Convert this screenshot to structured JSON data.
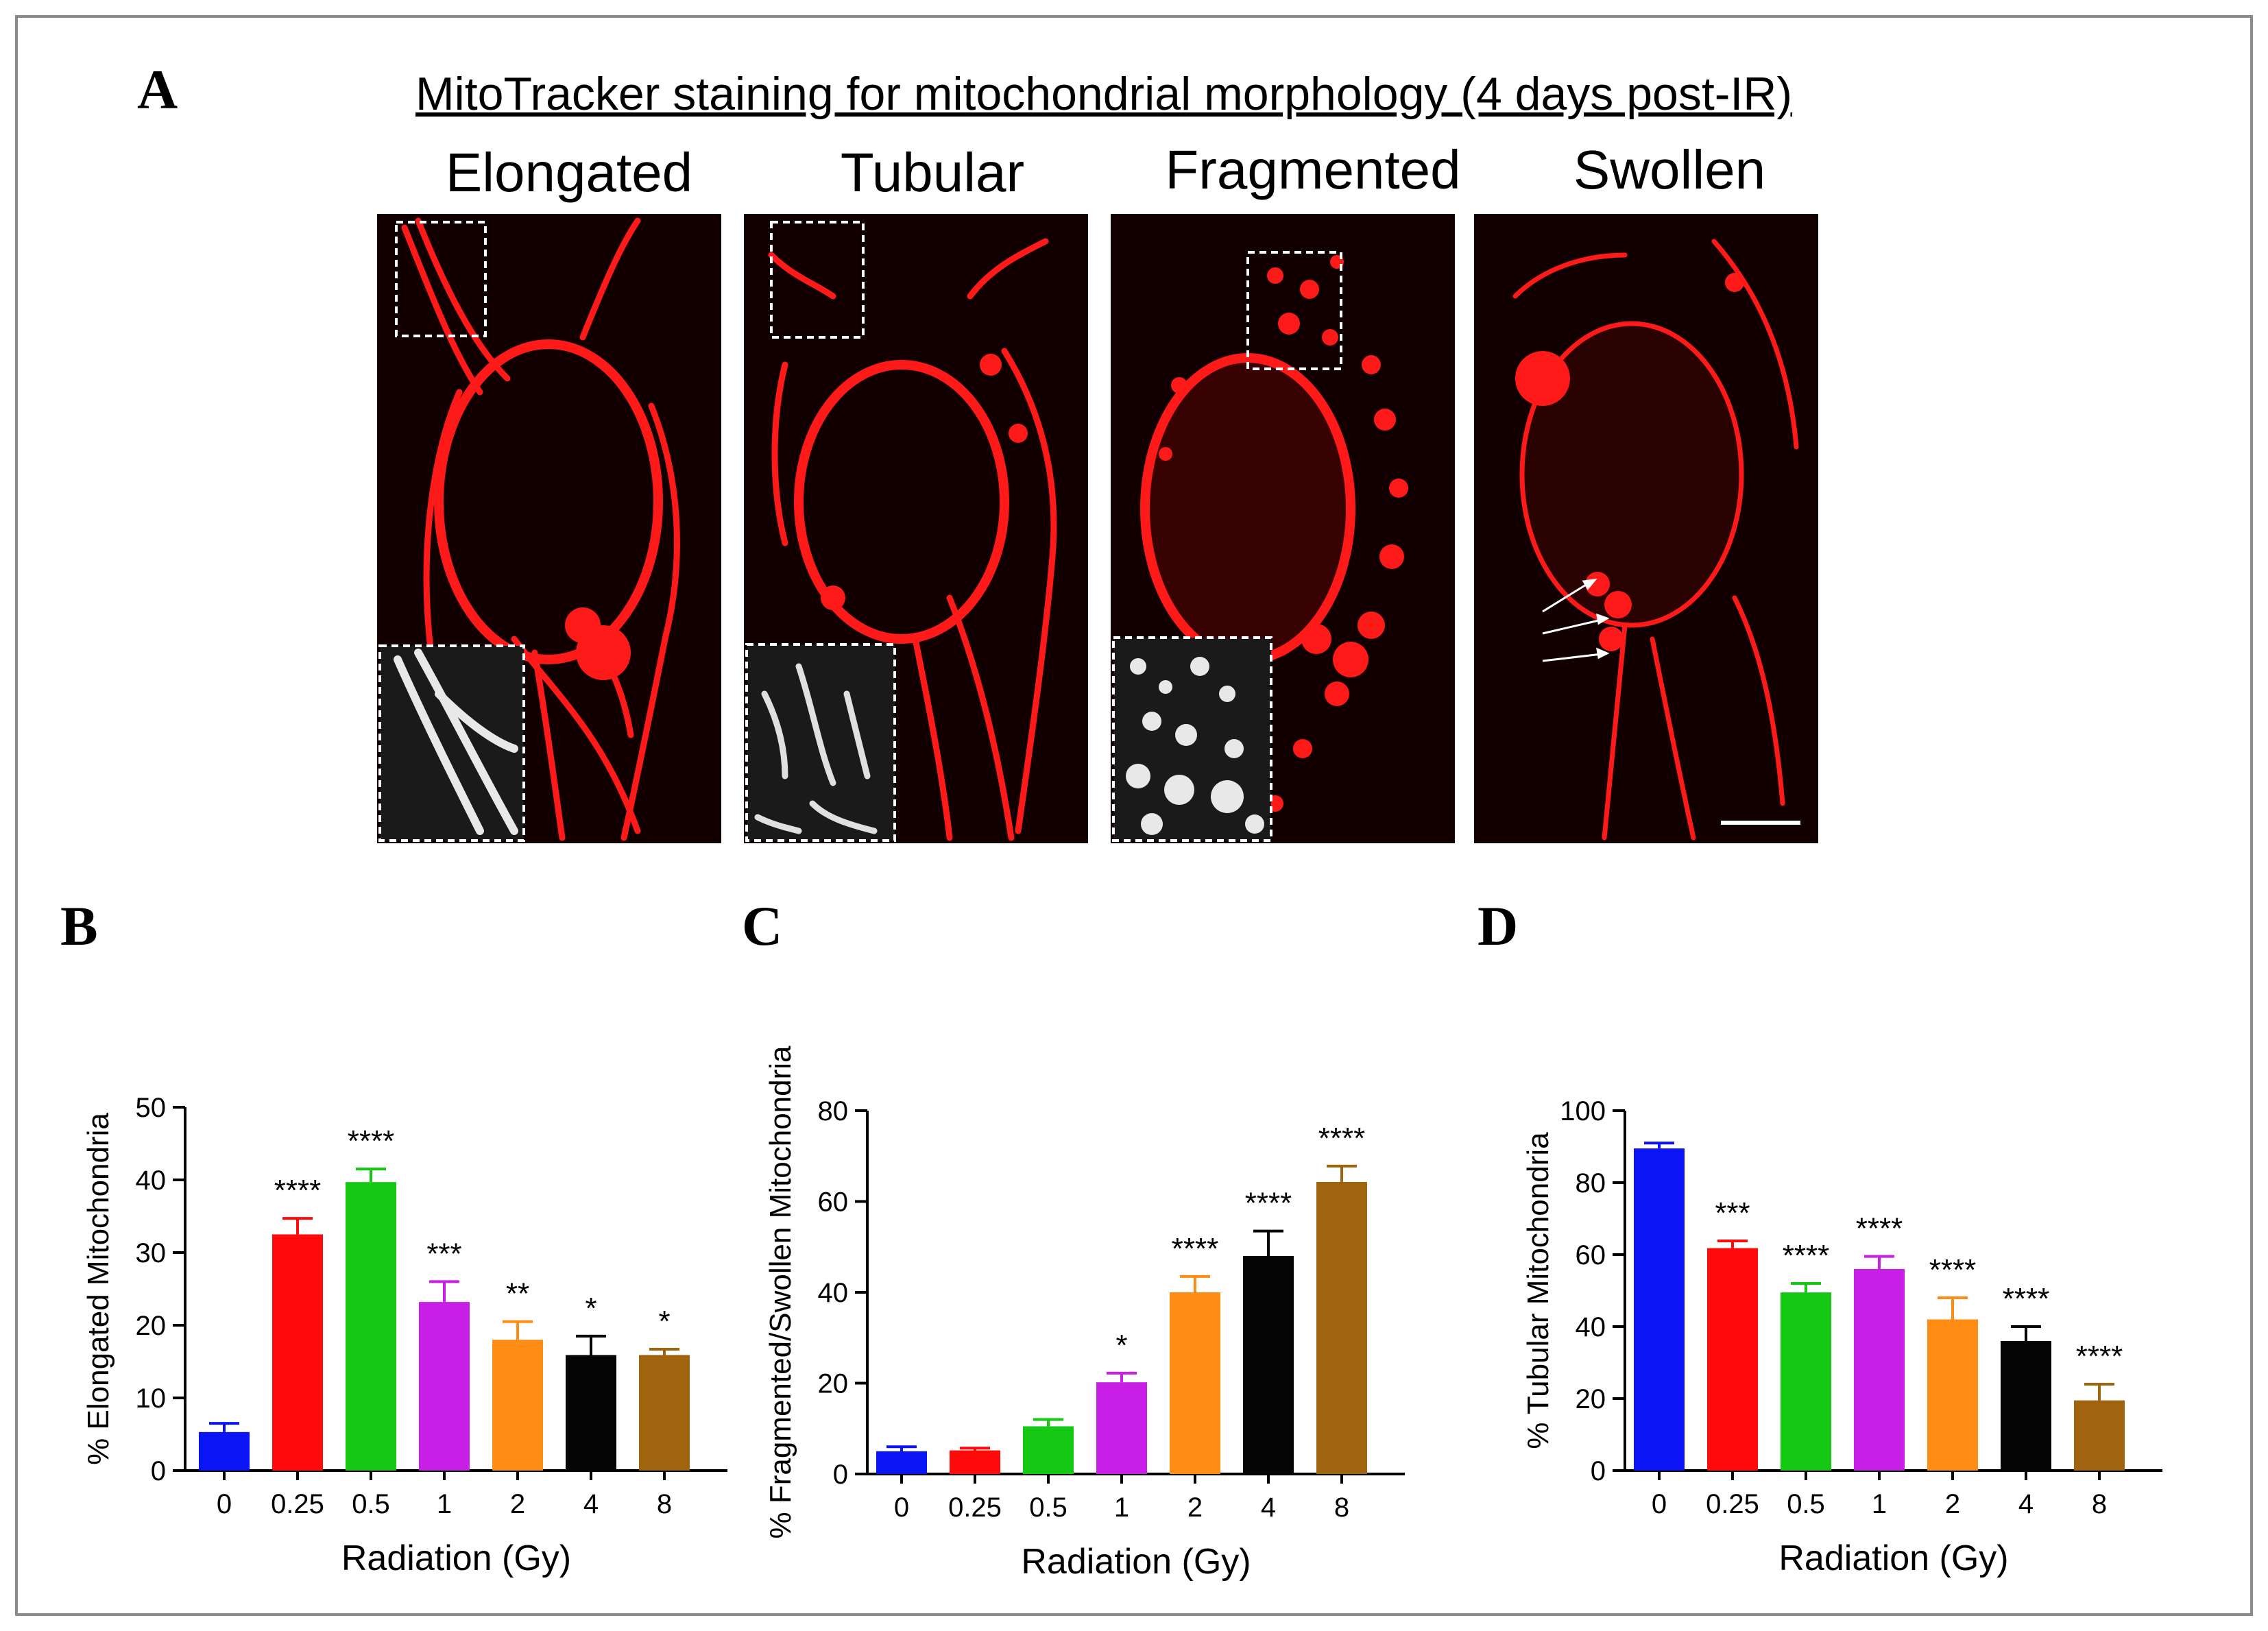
{
  "figure": {
    "panel_letters": {
      "a": "A",
      "b": "B",
      "c": "C",
      "d": "D"
    },
    "panel_a": {
      "title": "MitoTracker staining for mitochondrial morphology (4 days post-IR)",
      "columns": [
        "Elongated",
        "Tubular",
        "Fragmented",
        "Swollen"
      ]
    }
  },
  "colors": {
    "micro_bg": "#120000",
    "mito": "#ff1a1a",
    "bar_colors": [
      "#0a14f5",
      "#ff0a0a",
      "#14c814",
      "#c81ee6",
      "#ff8c14",
      "#050505",
      "#a0640f"
    ]
  },
  "chart_data": [
    {
      "type": "bar",
      "panel": "B",
      "categories": [
        "0",
        "0.25",
        "0.5",
        "1",
        "2",
        "4",
        "8"
      ],
      "values": [
        5.3,
        32.5,
        39.7,
        23.2,
        18.0,
        15.9,
        15.9
      ],
      "errors": [
        1.2,
        2.2,
        1.8,
        2.8,
        2.5,
        2.6,
        0.8
      ],
      "significance": [
        "",
        "****",
        "****",
        "***",
        "**",
        "*",
        "*"
      ],
      "ylim": [
        0,
        50
      ],
      "yticks": [
        "0",
        "10",
        "20",
        "30",
        "40",
        "50"
      ],
      "xlabel": "Radiation (Gy)",
      "ylabel": "% Elongated Mitochondria"
    },
    {
      "type": "bar",
      "panel": "C",
      "categories": [
        "0",
        "0.25",
        "0.5",
        "1",
        "2",
        "4",
        "8"
      ],
      "values": [
        5.0,
        5.2,
        10.5,
        20.2,
        40.0,
        48.0,
        64.3
      ],
      "errors": [
        1.0,
        0.5,
        1.5,
        2.0,
        3.5,
        5.5,
        3.5
      ],
      "significance": [
        "",
        "",
        "",
        "*",
        "****",
        "****",
        "****"
      ],
      "ylim": [
        0,
        80
      ],
      "yticks": [
        "0",
        "20",
        "40",
        "60",
        "80"
      ],
      "xlabel": "Radiation (Gy)",
      "ylabel": "% Fragmented/Swollen Mitochondria"
    },
    {
      "type": "bar",
      "panel": "D",
      "categories": [
        "0",
        "0.25",
        "0.5",
        "1",
        "2",
        "4",
        "8"
      ],
      "values": [
        89.5,
        61.8,
        49.5,
        56.0,
        42.0,
        36.0,
        19.5
      ],
      "errors": [
        1.5,
        2.0,
        2.5,
        3.5,
        6.0,
        4.0,
        4.5
      ],
      "significance": [
        "",
        "***",
        "****",
        "****",
        "****",
        "****",
        "****"
      ],
      "ylim": [
        0,
        100
      ],
      "yticks": [
        "0",
        "20",
        "40",
        "60",
        "80",
        "100"
      ],
      "xlabel": "Radiation (Gy)",
      "ylabel": "% Tubular Mitochondria"
    }
  ]
}
